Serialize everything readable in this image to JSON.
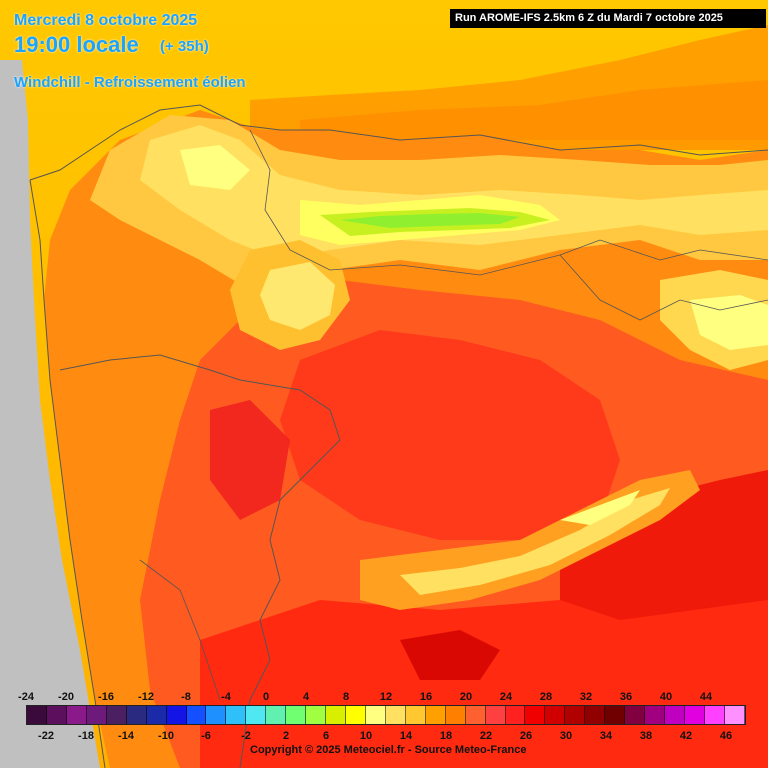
{
  "header": {
    "date": "Mercredi 8 octobre 2025",
    "hour": "19:00 locale",
    "hour_offset": "(+ 35h)",
    "parameter": "Windchill - Refroissement éolien",
    "run": "Run AROME-IFS 2.5km 6 Z du Mardi 7 octobre 2025"
  },
  "legend": {
    "top_ticks": [
      "-24",
      "-20",
      "-16",
      "-12",
      "-8",
      "-4",
      "0",
      "4",
      "8",
      "12",
      "16",
      "20",
      "24",
      "28",
      "32",
      "36",
      "40",
      "44"
    ],
    "bottom_ticks": [
      "-22",
      "-18",
      "-14",
      "-10",
      "-6",
      "-2",
      "2",
      "6",
      "10",
      "14",
      "18",
      "22",
      "26",
      "30",
      "34",
      "38",
      "42",
      "46"
    ],
    "colors": [
      "#3a0a3a",
      "#5c0f5c",
      "#8a1a8a",
      "#6e1a7a",
      "#4a2060",
      "#2a2a80",
      "#1a2aa8",
      "#1414e6",
      "#1450ff",
      "#1e90ff",
      "#30c0f8",
      "#50e8f0",
      "#60f0b0",
      "#70ff70",
      "#a0ff40",
      "#d8f000",
      "#ffff00",
      "#ffff80",
      "#ffe060",
      "#ffc830",
      "#ffa000",
      "#ff8000",
      "#ff6030",
      "#ff4040",
      "#ff2020",
      "#f00000",
      "#d00000",
      "#b00000",
      "#900000",
      "#700000",
      "#800040",
      "#a00080",
      "#c000c0",
      "#e000e0",
      "#ff40ff",
      "#ff90ff"
    ]
  },
  "footer": {
    "copyright": "Copyright © 2025 Meteociel.fr - Source Meteo-France"
  }
}
